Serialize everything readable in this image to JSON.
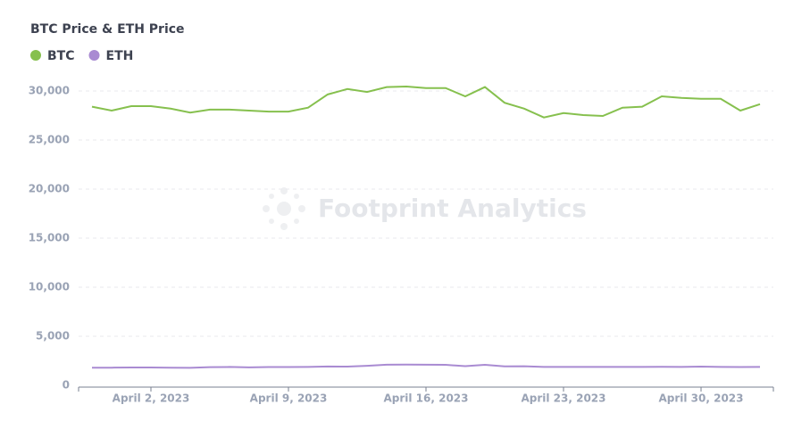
{
  "chart_data": {
    "type": "line",
    "title": "BTC Price & ETH Price",
    "watermark": "Footprint Analytics",
    "x": [
      "2023-03-30",
      "2023-03-31",
      "2023-04-01",
      "2023-04-02",
      "2023-04-03",
      "2023-04-04",
      "2023-04-05",
      "2023-04-06",
      "2023-04-07",
      "2023-04-08",
      "2023-04-09",
      "2023-04-10",
      "2023-04-11",
      "2023-04-12",
      "2023-04-13",
      "2023-04-14",
      "2023-04-15",
      "2023-04-16",
      "2023-04-17",
      "2023-04-18",
      "2023-04-19",
      "2023-04-20",
      "2023-04-21",
      "2023-04-22",
      "2023-04-23",
      "2023-04-24",
      "2023-04-25",
      "2023-04-26",
      "2023-04-27",
      "2023-04-28",
      "2023-04-29",
      "2023-04-30",
      "2023-05-01",
      "2023-05-02",
      "2023-05-03"
    ],
    "series": [
      {
        "name": "BTC",
        "color": "#86c04e",
        "values": [
          28400,
          28000,
          28450,
          28450,
          28200,
          27800,
          28100,
          28100,
          28000,
          27900,
          27900,
          28300,
          29650,
          30200,
          29900,
          30400,
          30450,
          30300,
          30300,
          29450,
          30400,
          28800,
          28200,
          27300,
          27750,
          27550,
          27450,
          28300,
          28400,
          29450,
          29300,
          29200,
          29200,
          28000,
          28650
        ]
      },
      {
        "name": "ETH",
        "color": "#a98bd2",
        "values": [
          1790,
          1800,
          1820,
          1820,
          1790,
          1780,
          1850,
          1870,
          1830,
          1860,
          1860,
          1870,
          1920,
          1910,
          1990,
          2100,
          2110,
          2100,
          2090,
          1950,
          2090,
          1930,
          1940,
          1870,
          1870,
          1870,
          1870,
          1880,
          1880,
          1890,
          1880,
          1910,
          1880,
          1860,
          1870
        ]
      }
    ],
    "xticks": [
      {
        "value": "2023-04-02",
        "label": "April 2, 2023"
      },
      {
        "value": "2023-04-09",
        "label": "April 9, 2023"
      },
      {
        "value": "2023-04-16",
        "label": "April 16, 2023"
      },
      {
        "value": "2023-04-23",
        "label": "April 23, 2023"
      },
      {
        "value": "2023-04-30",
        "label": "April 30, 2023"
      }
    ],
    "ylim": [
      0,
      30000
    ],
    "yticks": [
      0,
      {
        "value": 5000,
        "label": "5,000"
      },
      {
        "value": 10000,
        "label": "10,000"
      },
      {
        "value": 15000,
        "label": "15,000"
      },
      {
        "value": 20000,
        "label": "20,000"
      },
      {
        "value": 25000,
        "label": "25,000"
      },
      {
        "value": 30000,
        "label": "30,000"
      }
    ],
    "grid": true
  }
}
